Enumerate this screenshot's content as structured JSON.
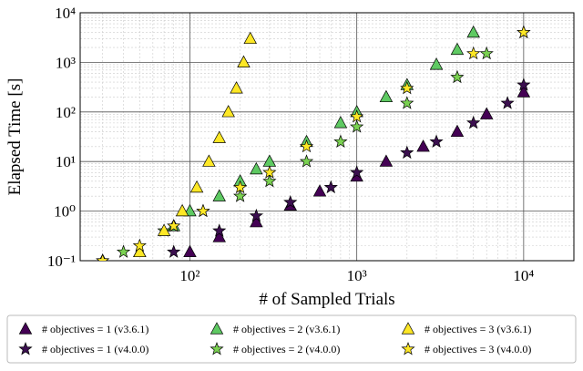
{
  "chart_data": {
    "type": "scatter",
    "x_label": "# of Sampled Trials",
    "y_label": "Elapsed Time [s]",
    "xscale": "log",
    "yscale": "log",
    "xlim": [
      22,
      20000
    ],
    "ylim": [
      0.1,
      10000
    ],
    "xticks": [
      {
        "value": 100,
        "label": "10²"
      },
      {
        "value": 1000,
        "label": "10³"
      },
      {
        "value": 10000,
        "label": "10⁴"
      }
    ],
    "yticks": [
      {
        "value": 0.1,
        "label": "10⁻¹"
      },
      {
        "value": 1,
        "label": "10⁰"
      },
      {
        "value": 10,
        "label": "10¹"
      },
      {
        "value": 100,
        "label": "10²"
      },
      {
        "value": 1000,
        "label": "10³"
      },
      {
        "value": 10000,
        "label": "10⁴"
      }
    ],
    "grid": true,
    "minor_grid": true,
    "legend": "below",
    "series": [
      {
        "name": "# objectives = 1 (v3.6.1)",
        "color": "#440154",
        "marker": "triangle",
        "x": [
          100,
          150,
          250,
          400,
          600,
          1000,
          1500,
          2500,
          4000,
          6000,
          10000
        ],
        "values": [
          0.15,
          0.3,
          0.6,
          1.3,
          2.5,
          5,
          10,
          20,
          40,
          90,
          250
        ]
      },
      {
        "name": "# objectives = 1 (v4.0.0)",
        "color": "#3b0f4f",
        "marker": "star",
        "x": [
          80,
          150,
          250,
          400,
          700,
          1000,
          2000,
          3000,
          5000,
          8000,
          10000
        ],
        "values": [
          0.15,
          0.4,
          0.8,
          1.5,
          3,
          6,
          15,
          25,
          60,
          150,
          350
        ]
      },
      {
        "name": "# objectives = 2 (v3.6.1)",
        "color": "#5ec962",
        "marker": "triangle",
        "x": [
          50,
          80,
          100,
          150,
          200,
          250,
          300,
          500,
          800,
          1000,
          1500,
          2000,
          3000,
          4000,
          5000
        ],
        "values": [
          0.15,
          0.5,
          1,
          2,
          4,
          7,
          10,
          25,
          60,
          100,
          200,
          350,
          900,
          1800,
          4000
        ]
      },
      {
        "name": "# objectives = 2 (v4.0.0)",
        "color": "#7ad151",
        "marker": "star",
        "x": [
          40,
          70,
          120,
          200,
          300,
          500,
          800,
          1000,
          2000,
          4000,
          6000,
          10000
        ],
        "values": [
          0.15,
          0.4,
          1,
          2,
          4,
          10,
          25,
          50,
          150,
          500,
          1500,
          4000
        ]
      },
      {
        "name": "# objectives = 3 (v3.6.1)",
        "color": "#fde725",
        "marker": "triangle",
        "x": [
          30,
          50,
          70,
          90,
          110,
          130,
          150,
          170,
          190,
          210,
          230
        ],
        "values": [
          0.1,
          0.15,
          0.4,
          1,
          3,
          10,
          30,
          100,
          300,
          1000,
          3000
        ]
      },
      {
        "name": "# objectives = 3 (v4.0.0)",
        "color": "#fde725",
        "marker": "star",
        "x": [
          30,
          50,
          80,
          120,
          200,
          300,
          500,
          1000,
          2000,
          5000,
          10000
        ],
        "values": [
          0.1,
          0.2,
          0.5,
          1,
          3,
          6,
          20,
          80,
          300,
          1500,
          4000
        ]
      }
    ]
  }
}
